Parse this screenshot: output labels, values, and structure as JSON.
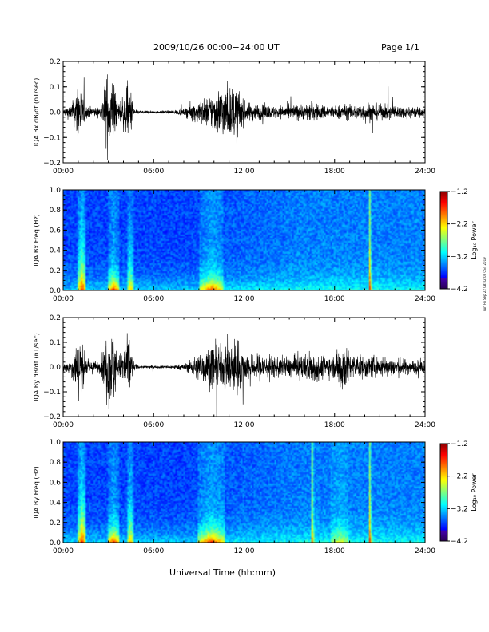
{
  "header": {
    "title": "2009/10/26  00:00−24:00 UT",
    "page": "Page 1/1"
  },
  "xaxis_label": "Universal Time (hh:mm)",
  "side_stamp": "run Fri Sep 22 08:02:03 CST 2019",
  "chart_data": [
    {
      "type": "line",
      "ylabel": "IQA Bx dB/dt (nT/sec)",
      "x_ticks": [
        "00:00",
        "06:00",
        "12:00",
        "18:00",
        "24:00"
      ],
      "xlim_hours": [
        0,
        24
      ],
      "ylim": [
        -0.2,
        0.2
      ],
      "y_ticks": [
        "0.2",
        "0.1",
        "0.0",
        "−0.1",
        "−0.2"
      ],
      "y_tick_values": [
        0.2,
        0.1,
        0.0,
        -0.1,
        -0.2
      ],
      "series": [
        {
          "x_hours": [
            0,
            0.5,
            0.8,
            1.0,
            1.2,
            1.5,
            2.0,
            2.5,
            2.9,
            3.1,
            3.4,
            3.6,
            4.0,
            4.4,
            4.7,
            5.0,
            6.0,
            7.0,
            8.0,
            8.5,
            9.0,
            9.5,
            10.0,
            10.5,
            11.0,
            11.5,
            12.0,
            12.5,
            13.0,
            14.0,
            15.0,
            16.0,
            16.5,
            17.0,
            18.0,
            18.5,
            19.0,
            19.5,
            20.0,
            21.0,
            22.0,
            23.0,
            24.0
          ],
          "amplitude": [
            0.02,
            0.05,
            0.1,
            0.25,
            0.15,
            0.04,
            0.03,
            0.03,
            0.25,
            0.25,
            0.22,
            0.05,
            0.12,
            0.2,
            0.03,
            0.01,
            0.01,
            0.01,
            0.02,
            0.06,
            0.08,
            0.09,
            0.13,
            0.17,
            0.15,
            0.18,
            0.07,
            0.06,
            0.05,
            0.04,
            0.05,
            0.05,
            0.07,
            0.05,
            0.04,
            0.05,
            0.05,
            0.05,
            0.07,
            0.05,
            0.04,
            0.04,
            0.03
          ]
        }
      ]
    },
    {
      "type": "heatmap",
      "ylabel": "IQA Bx Freq (Hz)",
      "x_ticks": [
        "00:00",
        "06:00",
        "12:00",
        "18:00",
        "24:00"
      ],
      "xlim_hours": [
        0,
        24
      ],
      "ylim": [
        0.0,
        1.0
      ],
      "y_ticks": [
        "1.0",
        "0.8",
        "0.6",
        "0.4",
        "0.2",
        "0.0"
      ],
      "y_tick_values": [
        1.0,
        0.8,
        0.6,
        0.4,
        0.2,
        0.0
      ],
      "colorbar": {
        "label": "Log₁₀ Power",
        "ticks": [
          "−1.2",
          "−2.2",
          "−3.2",
          "−4.2"
        ],
        "range": [
          -4.2,
          -1.2
        ]
      },
      "events": [
        {
          "t": 1.2,
          "width": 0.25,
          "strength": 0.9
        },
        {
          "t": 3.3,
          "width": 0.4,
          "strength": 0.95
        },
        {
          "t": 4.4,
          "width": 0.2,
          "strength": 0.6
        },
        {
          "t": 9.8,
          "width": 0.8,
          "strength": 0.85
        },
        {
          "t": 20.3,
          "width": 0.1,
          "strength": 0.5
        }
      ]
    },
    {
      "type": "line",
      "ylabel": "IQA By dB/dt (nT/sec)",
      "x_ticks": [
        "00:00",
        "06:00",
        "12:00",
        "18:00",
        "24:00"
      ],
      "xlim_hours": [
        0,
        24
      ],
      "ylim": [
        -0.2,
        0.2
      ],
      "y_ticks": [
        "0.2",
        "0.1",
        "0.0",
        "−0.1",
        "−0.2"
      ],
      "y_tick_values": [
        0.2,
        0.1,
        0.0,
        -0.1,
        -0.2
      ],
      "series": [
        {
          "x_hours": [
            0,
            0.5,
            0.8,
            1.0,
            1.2,
            1.5,
            2.0,
            2.5,
            2.9,
            3.1,
            3.4,
            3.6,
            4.0,
            4.4,
            4.7,
            5.0,
            6.0,
            7.0,
            8.0,
            8.5,
            9.0,
            9.5,
            10.0,
            10.5,
            11.0,
            11.5,
            12.0,
            12.5,
            13.0,
            14.0,
            15.0,
            16.0,
            16.5,
            17.0,
            18.0,
            18.5,
            19.0,
            19.5,
            20.0,
            21.0,
            22.0,
            23.0,
            24.0
          ],
          "amplitude": [
            0.03,
            0.05,
            0.12,
            0.25,
            0.18,
            0.05,
            0.04,
            0.04,
            0.25,
            0.25,
            0.25,
            0.05,
            0.15,
            0.22,
            0.03,
            0.01,
            0.01,
            0.01,
            0.02,
            0.05,
            0.1,
            0.12,
            0.15,
            0.13,
            0.17,
            0.2,
            0.1,
            0.08,
            0.09,
            0.07,
            0.07,
            0.08,
            0.12,
            0.08,
            0.07,
            0.2,
            0.09,
            0.07,
            0.08,
            0.07,
            0.06,
            0.05,
            0.04
          ]
        }
      ]
    },
    {
      "type": "heatmap",
      "ylabel": "IQA By Freq (Hz)",
      "x_ticks": [
        "00:00",
        "06:00",
        "12:00",
        "18:00",
        "24:00"
      ],
      "xlim_hours": [
        0,
        24
      ],
      "ylim": [
        0.0,
        1.0
      ],
      "y_ticks": [
        "1.0",
        "0.8",
        "0.6",
        "0.4",
        "0.2",
        "0.0"
      ],
      "y_tick_values": [
        1.0,
        0.8,
        0.6,
        0.4,
        0.2,
        0.0
      ],
      "colorbar": {
        "label": "Log₁₀ Power",
        "ticks": [
          "−1.2",
          "−2.2",
          "−3.2",
          "−4.2"
        ],
        "range": [
          -4.2,
          -1.2
        ]
      },
      "events": [
        {
          "t": 1.2,
          "width": 0.25,
          "strength": 0.9
        },
        {
          "t": 3.3,
          "width": 0.4,
          "strength": 0.95
        },
        {
          "t": 4.4,
          "width": 0.2,
          "strength": 0.65
        },
        {
          "t": 9.8,
          "width": 0.9,
          "strength": 0.9
        },
        {
          "t": 16.5,
          "width": 0.1,
          "strength": 0.4
        },
        {
          "t": 18.3,
          "width": 0.6,
          "strength": 0.4
        },
        {
          "t": 20.3,
          "width": 0.1,
          "strength": 0.5
        }
      ]
    }
  ]
}
